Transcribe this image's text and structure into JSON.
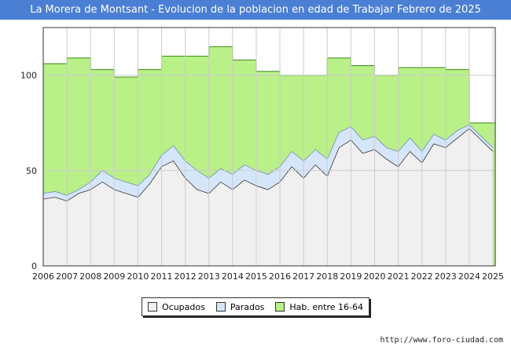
{
  "title": "La Morera de Montsant - Evolucion de la poblacion en edad de Trabajar Febrero de 2025",
  "watermark": "FORO-CIUDAD.COM",
  "footer_url": "http://www.foro-ciudad.com",
  "legend": [
    {
      "label": "Ocupados",
      "color": "#f0f0f0"
    },
    {
      "label": "Parados",
      "color": "#d6e6fa"
    },
    {
      "label": "Hab. entre 16-64",
      "color": "#b9f088"
    }
  ],
  "chart_data": {
    "type": "area",
    "ylim": [
      0,
      125
    ],
    "yticks": [
      0,
      50,
      100
    ],
    "xlim": [
      2006,
      2025.1
    ],
    "xticks": [
      "2006",
      "2007",
      "2008",
      "2009",
      "2010",
      "2011",
      "2012",
      "2013",
      "2014",
      "2015",
      "2016",
      "2017",
      "2018",
      "2019",
      "2020",
      "2021",
      "2022",
      "2023",
      "2024",
      "2025"
    ],
    "grid": true,
    "series": [
      {
        "name": "Hab. entre 16-64",
        "color": "#b9f088",
        "x": [
          2006,
          2007,
          2008,
          2009,
          2010,
          2011,
          2012,
          2013,
          2014,
          2015,
          2016,
          2017,
          2018,
          2019,
          2020,
          2021,
          2022,
          2023,
          2024
        ],
        "values": [
          106,
          109,
          103,
          99,
          103,
          110,
          110,
          115,
          108,
          102,
          100,
          100,
          109,
          105,
          100,
          104,
          104,
          103,
          75
        ]
      },
      {
        "name": "Parados",
        "color": "#d6e6fa",
        "x": [
          2006.0,
          2006.5,
          2007.0,
          2007.5,
          2008.0,
          2008.5,
          2009.0,
          2009.5,
          2010.0,
          2010.5,
          2011.0,
          2011.5,
          2012.0,
          2012.5,
          2013.0,
          2013.5,
          2014.0,
          2014.5,
          2015.0,
          2015.5,
          2016.0,
          2016.5,
          2017.0,
          2017.5,
          2018.0,
          2018.5,
          2019.0,
          2019.5,
          2020.0,
          2020.5,
          2021.0,
          2021.5,
          2022.0,
          2022.5,
          2023.0,
          2023.5,
          2024.0,
          2024.5,
          2025.0
        ],
        "values": [
          38,
          39,
          37,
          40,
          44,
          50,
          46,
          44,
          42,
          48,
          58,
          63,
          55,
          50,
          46,
          51,
          48,
          53,
          50,
          48,
          52,
          60,
          55,
          61,
          56,
          70,
          73,
          66,
          68,
          62,
          60,
          67,
          60,
          69,
          66,
          71,
          74,
          68,
          62
        ]
      },
      {
        "name": "Ocupados",
        "color": "#f0f0f0",
        "x": [
          2006.0,
          2006.5,
          2007.0,
          2007.5,
          2008.0,
          2008.5,
          2009.0,
          2009.5,
          2010.0,
          2010.5,
          2011.0,
          2011.5,
          2012.0,
          2012.5,
          2013.0,
          2013.5,
          2014.0,
          2014.5,
          2015.0,
          2015.5,
          2016.0,
          2016.5,
          2017.0,
          2017.5,
          2018.0,
          2018.5,
          2019.0,
          2019.5,
          2020.0,
          2020.5,
          2021.0,
          2021.5,
          2022.0,
          2022.5,
          2023.0,
          2023.5,
          2024.0,
          2024.5,
          2025.0
        ],
        "values": [
          35,
          36,
          34,
          38,
          40,
          44,
          40,
          38,
          36,
          43,
          52,
          55,
          46,
          40,
          38,
          44,
          40,
          45,
          42,
          40,
          44,
          52,
          46,
          53,
          47,
          62,
          66,
          59,
          61,
          56,
          52,
          60,
          54,
          64,
          62,
          67,
          72,
          66,
          60
        ]
      }
    ]
  }
}
